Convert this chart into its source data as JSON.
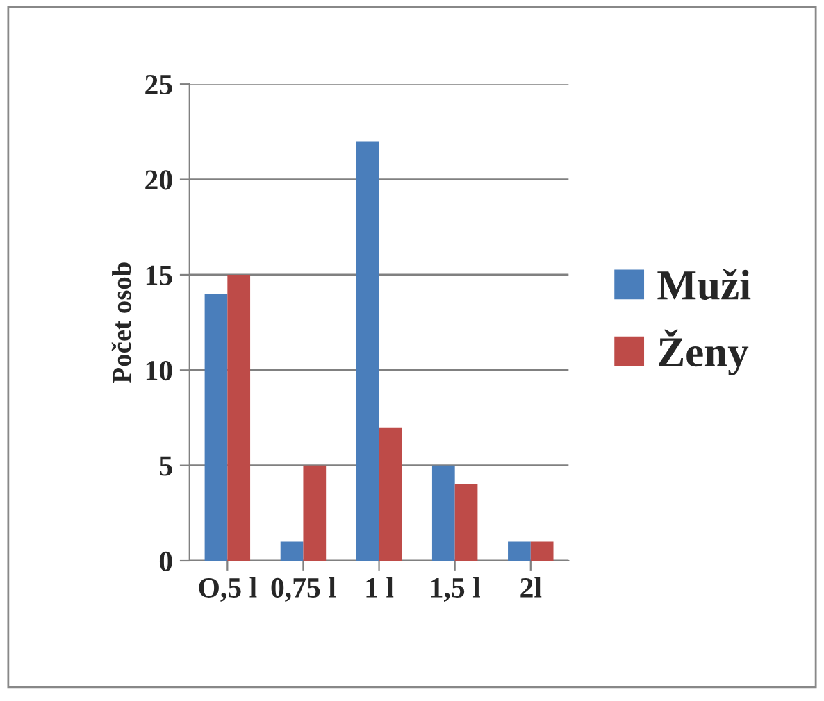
{
  "chart_data": {
    "type": "bar",
    "ylabel": "Počet osob",
    "categories": [
      "O,5 l",
      "0,75 l",
      "1 l",
      "1,5 l",
      "2l"
    ],
    "series": [
      {
        "name": "Muži",
        "color": "#4a7ebb",
        "values": [
          14,
          1,
          22,
          5,
          1
        ]
      },
      {
        "name": "Ženy",
        "color": "#be4b48",
        "values": [
          15,
          5,
          7,
          4,
          1
        ]
      }
    ],
    "ylim": [
      0,
      25
    ],
    "yticks": [
      0,
      5,
      10,
      15,
      20,
      25
    ],
    "grid": "y",
    "legend": "right"
  }
}
